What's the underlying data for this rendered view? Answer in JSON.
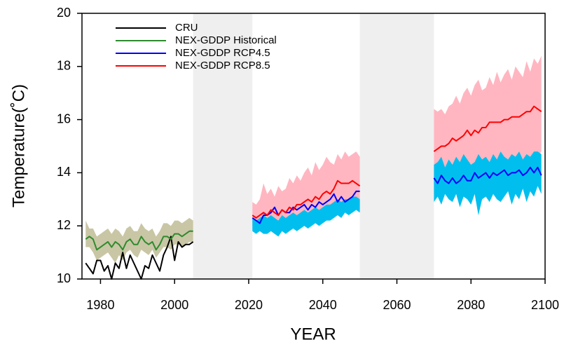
{
  "chart_data": {
    "type": "line",
    "xlabel": "YEAR",
    "ylabel": "Temperature(˚C)",
    "xlim": [
      1975,
      2100
    ],
    "ylim": [
      10,
      20
    ],
    "xticks": [
      1980,
      2000,
      2020,
      2040,
      2060,
      2080,
      2100
    ],
    "yticks": [
      10,
      12,
      14,
      16,
      18,
      20
    ],
    "shaded_regions": [
      [
        2005,
        2021
      ],
      [
        2050,
        2070
      ]
    ],
    "shade_color": "#efefef",
    "legend": "upper left",
    "series": [
      {
        "name": "CRU",
        "color": "#000000",
        "x": [
          1976,
          1977,
          1978,
          1979,
          1980,
          1981,
          1982,
          1983,
          1984,
          1985,
          1986,
          1987,
          1988,
          1989,
          1990,
          1991,
          1992,
          1993,
          1994,
          1995,
          1996,
          1997,
          1998,
          1999,
          2000,
          2001,
          2002,
          2003,
          2004,
          2005
        ],
        "values": [
          10.6,
          10.4,
          10.2,
          10.7,
          10.7,
          10.3,
          10.5,
          10.0,
          10.6,
          10.4,
          11.0,
          10.4,
          10.9,
          10.6,
          10.3,
          10.0,
          10.5,
          10.4,
          10.9,
          10.6,
          10.3,
          10.9,
          11.2,
          11.6,
          10.7,
          11.4,
          11.2,
          11.3,
          11.3,
          11.4
        ]
      },
      {
        "name": "NEX-GDDP Historical",
        "color": "#2e8b2e",
        "band_color": "#c9c6a5",
        "x": [
          1976,
          1977,
          1978,
          1979,
          1980,
          1981,
          1982,
          1983,
          1984,
          1985,
          1986,
          1987,
          1988,
          1989,
          1990,
          1991,
          1992,
          1993,
          1994,
          1995,
          1996,
          1997,
          1998,
          1999,
          2000,
          2001,
          2002,
          2003,
          2004,
          2005
        ],
        "values": [
          11.5,
          11.6,
          11.5,
          11.1,
          11.2,
          11.3,
          11.4,
          11.2,
          11.4,
          11.3,
          11.1,
          11.4,
          11.5,
          11.3,
          11.3,
          11.6,
          11.4,
          11.3,
          11.4,
          11.1,
          11.3,
          11.6,
          11.6,
          11.5,
          11.7,
          11.7,
          11.6,
          11.7,
          11.8,
          11.8
        ],
        "lower": [
          11.2,
          11.2,
          11.0,
          10.7,
          10.8,
          10.9,
          11.0,
          10.8,
          10.6,
          10.9,
          10.7,
          11.0,
          11.1,
          10.9,
          10.8,
          11.1,
          11.0,
          10.9,
          11.1,
          10.8,
          11.0,
          11.2,
          11.2,
          11.1,
          11.3,
          11.3,
          11.2,
          11.3,
          11.4,
          11.4
        ],
        "upper": [
          12.2,
          11.9,
          11.9,
          11.6,
          11.7,
          11.8,
          11.9,
          11.7,
          11.9,
          11.8,
          11.6,
          11.9,
          12.0,
          11.8,
          11.8,
          12.1,
          11.9,
          11.8,
          11.9,
          11.6,
          11.8,
          12.1,
          12.1,
          12.0,
          12.2,
          12.2,
          12.1,
          12.2,
          12.3,
          12.2
        ]
      },
      {
        "name": "NEX-GDDP RCP4.5",
        "color": "#0000ff",
        "band_color": "#00bfef",
        "x": [
          2021,
          2022,
          2023,
          2024,
          2025,
          2026,
          2027,
          2028,
          2029,
          2030,
          2031,
          2032,
          2033,
          2034,
          2035,
          2036,
          2037,
          2038,
          2039,
          2040,
          2041,
          2042,
          2043,
          2044,
          2045,
          2046,
          2047,
          2048,
          2049,
          2050,
          null,
          2070,
          2071,
          2072,
          2073,
          2074,
          2075,
          2076,
          2077,
          2078,
          2079,
          2080,
          2081,
          2082,
          2083,
          2084,
          2085,
          2086,
          2087,
          2088,
          2089,
          2090,
          2091,
          2092,
          2093,
          2094,
          2095,
          2096,
          2097,
          2098,
          2099
        ],
        "values": [
          12.3,
          12.2,
          12.1,
          12.4,
          12.4,
          12.5,
          12.7,
          12.4,
          12.6,
          12.5,
          12.5,
          12.7,
          12.6,
          12.7,
          12.8,
          12.6,
          12.8,
          12.7,
          12.9,
          12.8,
          12.9,
          13.0,
          13.2,
          12.9,
          13.1,
          12.9,
          13.0,
          13.1,
          13.3,
          13.3,
          null,
          13.8,
          13.6,
          13.9,
          13.7,
          13.6,
          13.8,
          13.6,
          13.7,
          13.9,
          13.7,
          13.7,
          14.0,
          13.8,
          13.9,
          14.0,
          13.8,
          14.0,
          13.9,
          14.0,
          14.1,
          13.9,
          14.0,
          14.0,
          14.1,
          13.9,
          14.0,
          14.2,
          14.0,
          14.2,
          13.9
        ],
        "lower": [
          11.8,
          11.7,
          11.8,
          11.7,
          11.7,
          11.8,
          11.7,
          11.6,
          11.8,
          11.7,
          11.8,
          11.9,
          11.8,
          11.9,
          12.0,
          11.9,
          12.0,
          12.1,
          12.0,
          12.1,
          12.2,
          12.2,
          12.3,
          12.4,
          12.3,
          12.5,
          12.4,
          12.5,
          12.6,
          12.5,
          null,
          12.9,
          13.1,
          12.8,
          13.2,
          13.0,
          12.9,
          13.2,
          12.7,
          13.1,
          13.0,
          12.8,
          13.2,
          12.4,
          13.0,
          13.1,
          12.9,
          13.2,
          13.0,
          12.9,
          13.1,
          13.3,
          12.8,
          13.2,
          13.0,
          13.4,
          12.9,
          13.3,
          13.1,
          13.5,
          13.2
        ],
        "upper": [
          12.3,
          12.2,
          12.3,
          12.4,
          12.3,
          12.4,
          12.3,
          12.2,
          12.4,
          12.3,
          12.4,
          12.5,
          12.4,
          12.5,
          12.6,
          12.5,
          12.6,
          12.7,
          12.6,
          12.7,
          12.8,
          12.8,
          12.9,
          13.0,
          12.9,
          13.0,
          13.0,
          13.1,
          13.1,
          13.0,
          null,
          14.3,
          14.4,
          14.6,
          14.2,
          14.5,
          14.3,
          14.6,
          14.4,
          14.7,
          14.5,
          14.3,
          14.4,
          14.7,
          14.5,
          14.6,
          14.4,
          14.7,
          14.5,
          14.8,
          14.6,
          14.5,
          14.7,
          14.6,
          14.8,
          14.5,
          14.7,
          14.6,
          14.8,
          14.8,
          14.7
        ]
      },
      {
        "name": "NEX-GDDP RCP8.5",
        "color": "#ff0000",
        "band_color": "#ffb6c1",
        "x": [
          2021,
          2022,
          2023,
          2024,
          2025,
          2026,
          2027,
          2028,
          2029,
          2030,
          2031,
          2032,
          2033,
          2034,
          2035,
          2036,
          2037,
          2038,
          2039,
          2040,
          2041,
          2042,
          2043,
          2044,
          2045,
          2046,
          2047,
          2048,
          2049,
          2050,
          null,
          2070,
          2071,
          2072,
          2073,
          2074,
          2075,
          2076,
          2077,
          2078,
          2079,
          2080,
          2081,
          2082,
          2083,
          2084,
          2085,
          2086,
          2087,
          2088,
          2089,
          2090,
          2091,
          2092,
          2093,
          2094,
          2095,
          2096,
          2097,
          2098,
          2099
        ],
        "values": [
          12.4,
          12.3,
          12.4,
          12.5,
          12.4,
          12.6,
          12.5,
          12.4,
          12.6,
          12.5,
          12.7,
          12.6,
          12.8,
          12.8,
          12.9,
          13.0,
          12.9,
          13.1,
          13.0,
          13.2,
          13.3,
          13.2,
          13.4,
          13.7,
          13.6,
          13.6,
          13.6,
          13.7,
          13.6,
          13.5,
          null,
          14.8,
          14.9,
          15.0,
          15.0,
          15.1,
          15.3,
          15.2,
          15.3,
          15.4,
          15.6,
          15.4,
          15.6,
          15.5,
          15.7,
          15.7,
          15.9,
          15.9,
          15.9,
          15.9,
          16.0,
          16.0,
          16.1,
          16.1,
          16.1,
          16.2,
          16.3,
          16.3,
          16.5,
          16.4,
          16.3
        ],
        "lower": [
          12.0,
          11.9,
          11.9,
          11.8,
          11.8,
          11.9,
          11.8,
          11.7,
          11.9,
          11.8,
          11.9,
          12.0,
          11.9,
          12.0,
          12.1,
          12.0,
          12.1,
          12.2,
          12.1,
          12.2,
          12.3,
          12.2,
          12.4,
          12.5,
          12.4,
          12.5,
          12.6,
          12.5,
          12.6,
          12.7,
          null,
          13.2,
          13.4,
          13.1,
          13.5,
          13.3,
          13.6,
          13.4,
          13.5,
          13.7,
          13.6,
          13.8,
          13.7,
          13.9,
          13.8,
          14.0,
          14.1,
          13.9,
          14.2,
          14.1,
          14.3,
          14.2,
          14.4,
          14.3,
          14.5,
          14.4,
          14.6,
          14.5,
          14.7,
          14.6,
          14.8
        ],
        "upper": [
          12.9,
          12.8,
          13.0,
          13.6,
          13.2,
          13.4,
          13.1,
          13.5,
          13.3,
          13.4,
          13.8,
          13.6,
          13.9,
          13.7,
          14.0,
          14.2,
          13.9,
          14.4,
          14.1,
          14.3,
          14.6,
          14.4,
          14.3,
          14.7,
          14.5,
          14.8,
          14.6,
          14.7,
          14.8,
          14.6,
          null,
          16.4,
          16.3,
          16.4,
          16.2,
          16.5,
          16.6,
          16.9,
          16.6,
          17.0,
          17.2,
          16.9,
          17.3,
          17.5,
          17.1,
          17.2,
          17.6,
          17.3,
          17.8,
          17.4,
          17.7,
          17.9,
          17.5,
          18.0,
          17.8,
          17.6,
          18.2,
          17.8,
          18.3,
          18.1,
          18.4
        ]
      }
    ]
  }
}
